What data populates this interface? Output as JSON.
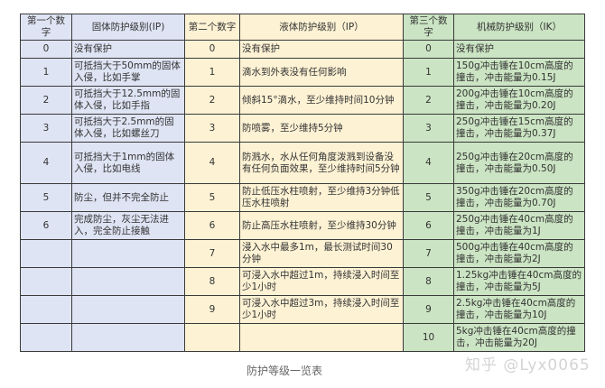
{
  "headers": [
    "第一个数字",
    "固体防护级别(IP)",
    "第二个数字",
    "液体防护级别（IP）",
    "第三个数字",
    "机械防护级别（IK）"
  ],
  "rows": [
    [
      "0",
      "没有保护",
      "0",
      "没有保护",
      "0",
      "没有保护"
    ],
    [
      "1",
      "可抵挡大于50mm的固体入侵，比如手掌",
      "1",
      "滴水到外表没有任何影响",
      "1",
      "150g冲击锤在10cm高度的撞击，冲击能量为0.15J"
    ],
    [
      "2",
      "可抵挡大于12.5mm的固体入侵，比如手指",
      "2",
      "倾斜15°滴水，至少维持时间10分钟",
      "2",
      "200g冲击锤在10cm高度的撞击，冲击能量为0.20J"
    ],
    [
      "3",
      "可抵挡大于2.5mm的固体入侵，比如螺丝刀",
      "3",
      "防喷雾，至少维持5分钟",
      "3",
      "250g冲击锤在15cm高度的撞击，冲击能量为0.37J"
    ],
    [
      "4",
      "可抵挡大于1mm的固体入侵，比如电线",
      "4",
      "防溅水，水从任何角度泼溅到设备没有任何负面效果，至少维持时间5分钟",
      "4",
      "250g冲击锤在20cm高度的撞击，冲击能量为0.50J"
    ],
    [
      "5",
      "防尘，但并不完全防止",
      "5",
      "防止低压水柱喷射，至少维持3分钟低压水柱喷射",
      "5",
      "350g冲击锤在20cm高度的撞击，冲击能量为0.70J"
    ],
    [
      "6",
      "完成防尘，灰尘无法进入，完全防止接触",
      "6",
      "防止高压水柱喷射，至少维持30分钟",
      "6",
      "250g冲击锤在40cm高度的撞击，冲击能量为1J"
    ],
    [
      "",
      "",
      "7",
      "浸入水中最多1m，最长测试时间30分钟",
      "7",
      "500g冲击锤在40cm高度的撞击，冲击能量为2J"
    ],
    [
      "",
      "",
      "8",
      "可浸入水中超过1m，持续浸入时间至少1小时",
      "8",
      "1.25kg冲击锤在40cm高度的撞击，冲击能量为5J"
    ],
    [
      "",
      "",
      "9",
      "可浸入水中超过3m，持续浸入时间至少1小时",
      "9",
      "2.5kg冲击锤在40cm高度的撞击，冲击能量为10J"
    ],
    [
      "",
      "",
      "",
      "",
      "10",
      "5kg冲击锤在40cm高度的撞击，冲击能量为20J"
    ]
  ],
  "caption": "防护等级一览表",
  "watermark": "知乎 @Lyx0065",
  "colors": {
    "solid": "#dfe4f4",
    "liquid": "#fdf2d4",
    "mechanical": "#cbe4c3",
    "border": "#3a3a3a"
  }
}
